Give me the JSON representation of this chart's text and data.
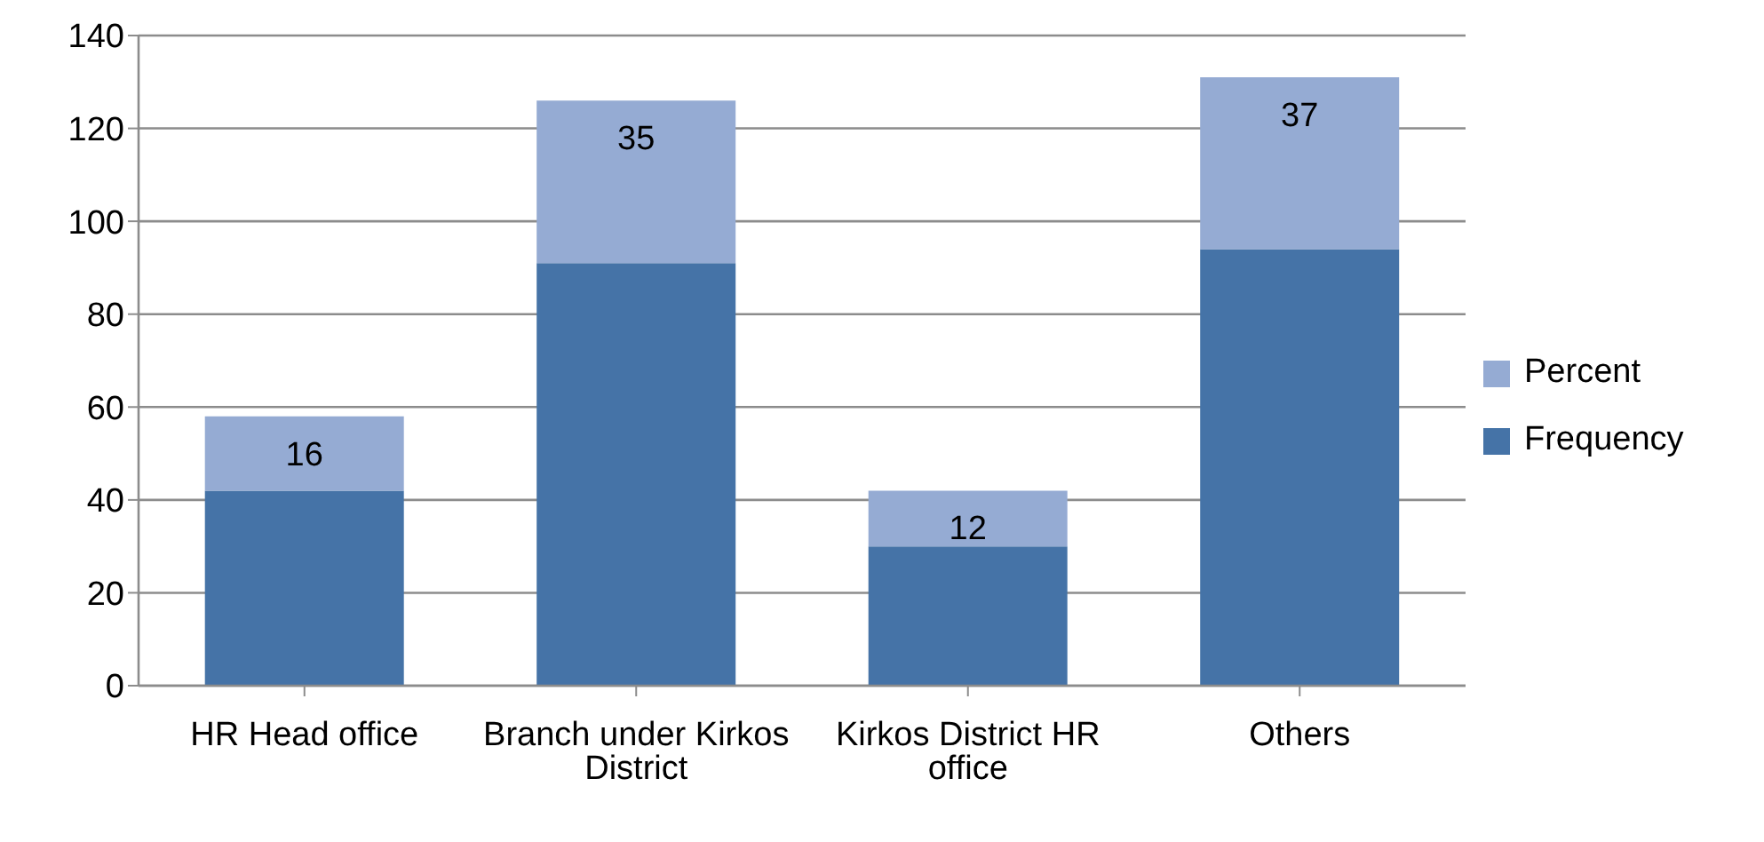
{
  "chart_data": {
    "type": "bar",
    "stacked": true,
    "categories": [
      "HR Head office",
      "Branch under Kirkos District",
      "Kirkos District HR office",
      "Others"
    ],
    "series": [
      {
        "name": "Frequency",
        "color": "#4573a7",
        "values": [
          42,
          91,
          30,
          94
        ]
      },
      {
        "name": "Percent",
        "color": "#95abd3",
        "values": [
          16,
          35,
          12,
          37
        ],
        "value_labels": [
          "16",
          "35",
          "12",
          "37"
        ]
      }
    ],
    "ylim": [
      0,
      140
    ],
    "yticks": [
      0,
      20,
      40,
      60,
      80,
      100,
      120,
      140
    ],
    "grid": "y",
    "legend": "right"
  }
}
